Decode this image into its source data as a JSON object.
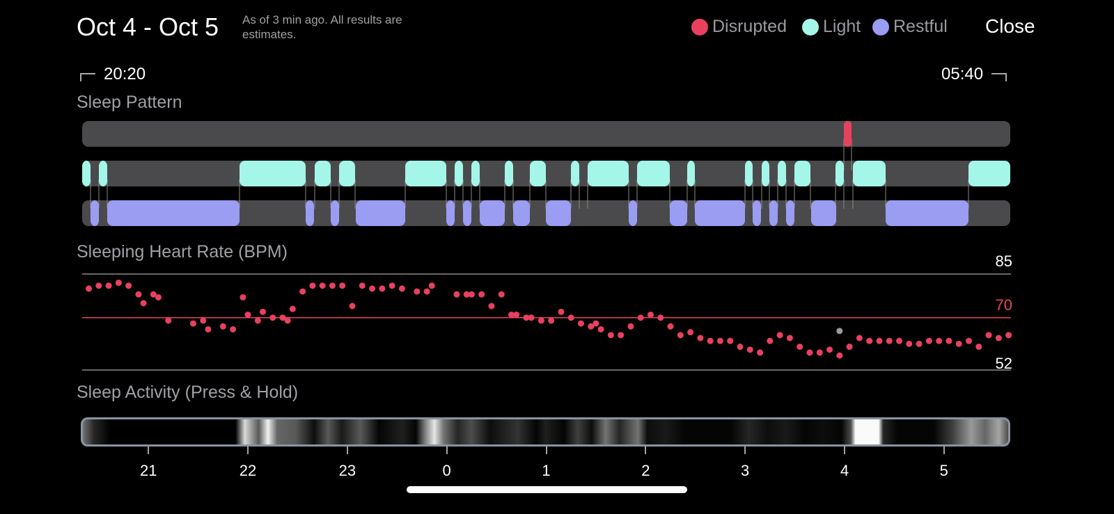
{
  "header": {
    "title": "Oct 4 - Oct 5",
    "subtitle": "As of 3 min ago. All results are estimates.",
    "close_label": "Close"
  },
  "legend": [
    {
      "label": "Disrupted",
      "color": "#E8415F"
    },
    {
      "label": "Light",
      "color": "#A4F6E8"
    },
    {
      "label": "Restful",
      "color": "#9A9DF2"
    }
  ],
  "time_range": {
    "start": "20:20",
    "end": "05:40"
  },
  "sections": {
    "sleep_pattern": "Sleep Pattern",
    "heart_rate": "Sleeping Heart Rate (BPM)",
    "activity": "Sleep Activity (Press & Hold)"
  },
  "heart_rate_refs": {
    "max": "85",
    "avg": "70",
    "min": "52"
  },
  "x_axis_ticks": [
    "21",
    "22",
    "23",
    "0",
    "1",
    "2",
    "3",
    "4",
    "5"
  ],
  "colors": {
    "background": "#000000",
    "track": "#4a4a4c",
    "disrupted": "#E8415F",
    "light": "#A4F6E8",
    "restful": "#9A9DF2",
    "outlier": "#9a9a9a"
  },
  "chart_data": {
    "type": "scatter",
    "title": "Sleeping Heart Rate (BPM)",
    "ylim": [
      52,
      85
    ],
    "reference_lines": [
      85,
      70,
      52
    ],
    "x": [
      20.4,
      20.5,
      20.6,
      20.7,
      20.8,
      20.9,
      20.95,
      21.05,
      21.1,
      21.2,
      21.45,
      21.55,
      21.6,
      21.75,
      21.85,
      21.95,
      22.0,
      22.1,
      22.15,
      22.25,
      22.35,
      22.4,
      22.45,
      22.55,
      22.65,
      22.75,
      22.85,
      22.95,
      23.05,
      23.15,
      23.25,
      23.35,
      23.45,
      23.55,
      23.7,
      23.8,
      23.85,
      24.1,
      24.2,
      24.25,
      24.35,
      24.45,
      24.55,
      24.65,
      24.7,
      24.8,
      24.85,
      24.95,
      25.05,
      25.15,
      25.25,
      25.35,
      25.45,
      25.5,
      25.55,
      25.65,
      25.75,
      25.85,
      25.95,
      26.05,
      26.15,
      26.25,
      26.35,
      26.45,
      26.55,
      26.65,
      26.75,
      26.85,
      26.95,
      27.05,
      27.15,
      27.25,
      27.35,
      27.45,
      27.55,
      27.65,
      27.75,
      27.85,
      27.95,
      28.05,
      28.15,
      28.25,
      28.35,
      28.45,
      28.55,
      28.65,
      28.75,
      28.85,
      28.95,
      29.05,
      29.15,
      29.25,
      29.35,
      29.45,
      29.55,
      29.65
    ],
    "y": [
      80,
      81,
      81,
      82,
      81,
      78,
      75,
      78,
      77,
      69,
      68,
      69,
      66,
      67,
      66,
      77,
      71,
      69,
      72,
      70,
      70,
      69,
      73,
      79,
      81,
      81,
      81,
      81,
      74,
      81,
      80,
      80,
      81,
      80,
      79,
      79,
      81,
      78,
      78,
      78,
      78,
      74,
      78,
      71,
      71,
      70,
      70,
      69,
      69,
      72,
      70,
      68,
      67,
      68,
      66,
      64,
      64,
      67,
      70,
      71,
      70,
      67,
      64,
      65,
      63,
      62,
      62,
      62,
      60,
      59,
      58,
      62,
      64,
      63,
      60,
      58,
      58,
      59,
      57,
      60,
      63,
      62,
      62,
      62,
      62,
      61,
      61,
      62,
      62,
      62,
      61,
      62,
      60,
      64,
      63,
      64
    ],
    "outlier": {
      "x": 27.95,
      "y": 64
    }
  }
}
